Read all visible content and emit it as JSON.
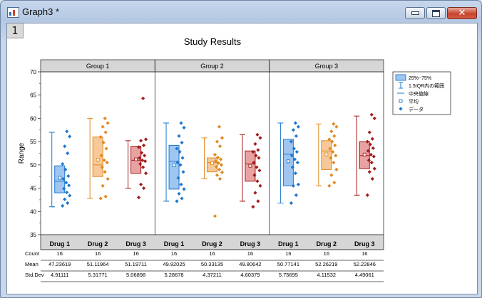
{
  "window": {
    "title": "Graph3 *",
    "page_tab": "1"
  },
  "colors": {
    "drug1": "#1f77cf",
    "drug2": "#e0891f",
    "drug3": "#a31c1c",
    "drug1_fill": "#9fc6f0",
    "drug2_fill": "#f7c99a",
    "drug3_fill": "#e9a2a2"
  },
  "chart_data": {
    "type": "box",
    "title": "Study Results",
    "ylabel": "Range",
    "ylim": [
      35,
      70
    ],
    "yticks": [
      35,
      40,
      45,
      50,
      55,
      60,
      65,
      70
    ],
    "groups": [
      "Group 1",
      "Group 2",
      "Group 3"
    ],
    "categories": [
      "Drug 1",
      "Drug 2",
      "Drug 3"
    ],
    "legend": {
      "position": "top-right",
      "items": [
        "25%~75%",
        "1.5IQR内の範囲",
        "中央値線",
        "平均",
        "データ"
      ]
    },
    "boxes": [
      {
        "group": "Group 1",
        "drug": "Drug 1",
        "whisker_low": 41,
        "q1": 44,
        "median": 46.5,
        "q3": 49.8,
        "whisker_high": 57,
        "mean": 47.23619,
        "points": [
          41.2,
          41.8,
          42.6,
          43.4,
          44.1,
          44.9,
          45.6,
          46.2,
          47.0,
          47.6,
          49.0,
          50.2,
          52.5,
          54.0,
          56.1,
          57.2
        ]
      },
      {
        "group": "Group 1",
        "drug": "Drug 2",
        "whisker_low": 42.8,
        "q1": 47.5,
        "median": 50,
        "q3": 56,
        "whisker_high": 60,
        "mean": 51.11964,
        "points": [
          42.8,
          43.2,
          45.5,
          47.0,
          48.5,
          49.5,
          50.5,
          51.0,
          52.0,
          53.5,
          54.8,
          56.0,
          57.0,
          58.2,
          59.0,
          60.0
        ]
      },
      {
        "group": "Group 1",
        "drug": "Drug 3",
        "whisker_low": 45,
        "q1": 48.2,
        "median": 51,
        "q3": 54,
        "whisker_high": 55.2,
        "mean": 51.19711,
        "points": [
          43.0,
          45.0,
          45.8,
          48.2,
          49.5,
          50.2,
          50.8,
          51.0,
          51.5,
          52.0,
          52.6,
          53.8,
          54.2,
          55.2,
          55.5,
          64.3
        ]
      },
      {
        "group": "Group 2",
        "drug": "Drug 1",
        "whisker_low": 42.2,
        "q1": 44.8,
        "median": 50.8,
        "q3": 54.2,
        "whisker_high": 59,
        "mean": 49.92025,
        "points": [
          42.2,
          42.8,
          43.8,
          44.8,
          45.8,
          47.2,
          48.5,
          50.0,
          50.5,
          51.5,
          52.8,
          53.5,
          54.8,
          56.2,
          58.0,
          59.0
        ]
      },
      {
        "group": "Group 2",
        "drug": "Drug 1",
        "whisker_low": 42.2,
        "q1": 44.8,
        "median": 50.8,
        "q3": 54.2,
        "whisker_high": 59,
        "mean": 49.92025,
        "duplicate": true,
        "points": []
      },
      {
        "group": "Group 2",
        "drug": "Drug 2",
        "whisker_low": 47,
        "q1": 48.5,
        "median": 50.5,
        "q3": 51.5,
        "whisker_high": 55.8,
        "mean": 50.33135,
        "points": [
          39.0,
          47.0,
          47.8,
          48.4,
          49.0,
          49.6,
          50.0,
          50.4,
          50.8,
          51.2,
          51.6,
          52.2,
          54.0,
          55.0,
          55.8,
          58.2
        ]
      },
      {
        "group": "Group 2",
        "drug": "Drug 3",
        "whisker_low": 42.2,
        "q1": 46.5,
        "median": 50.2,
        "q3": 53,
        "whisker_high": 56.5,
        "mean": 49.80642,
        "points": [
          41.0,
          42.2,
          44.0,
          45.5,
          46.5,
          47.8,
          48.8,
          49.5,
          50.5,
          51.5,
          52.0,
          52.8,
          53.2,
          54.5,
          55.8,
          56.5
        ]
      },
      {
        "group": "Group 3",
        "drug": "Drug 1",
        "whisker_low": 41.8,
        "q1": 45.5,
        "median": 52.3,
        "q3": 55.5,
        "whisker_high": 59,
        "mean": 50.77141,
        "points": [
          41.8,
          43.5,
          45.5,
          45.8,
          48.2,
          49.5,
          50.5,
          51.2,
          52.0,
          52.8,
          53.5,
          55.0,
          56.2,
          57.5,
          58.2,
          59.0
        ]
      },
      {
        "group": "Group 3",
        "drug": "Drug 2",
        "whisker_low": 45.5,
        "q1": 49,
        "median": 53,
        "q3": 55.2,
        "whisker_high": 58.8,
        "mean": 52.26219,
        "points": [
          45.5,
          46.2,
          47.8,
          49.0,
          50.5,
          51.5,
          52.0,
          52.8,
          53.5,
          54.2,
          55.0,
          55.5,
          56.2,
          57.2,
          58.2,
          58.8
        ]
      },
      {
        "group": "Group 3",
        "drug": "Drug 3",
        "whisker_low": 43.5,
        "q1": 49.2,
        "median": 52,
        "q3": 55,
        "whisker_high": 60.5,
        "mean": 52.22846,
        "points": [
          43.5,
          47.0,
          48.5,
          49.2,
          50.5,
          51.0,
          51.8,
          52.2,
          53.0,
          53.6,
          54.4,
          55.0,
          55.6,
          57.0,
          60.0,
          60.8
        ]
      }
    ],
    "stats_table": {
      "row_labels": [
        "Count",
        "Mean",
        "Std.Dev"
      ],
      "columns": [
        {
          "drug": "Drug 1",
          "count": "16",
          "mean": "47.23619",
          "std": "4.91111"
        },
        {
          "drug": "Drug 2",
          "count": "16",
          "mean": "51.11964",
          "std": "5.31771"
        },
        {
          "drug": "Drug 3",
          "count": "16",
          "mean": "51.19711",
          "std": "5.06898"
        },
        {
          "drug": "Drug 1",
          "count": "16",
          "mean": "49.92025",
          "std": "5.28678"
        },
        {
          "drug": "Drug 2",
          "count": "16",
          "mean": "50.33135",
          "std": "4.37211"
        },
        {
          "drug": "Drug 3",
          "count": "16",
          "mean": "49.80642",
          "std": "4.60379"
        },
        {
          "drug": "Drug 1",
          "count": "16",
          "mean": "50.77141",
          "std": "5.75695"
        },
        {
          "drug": "Drug 2",
          "count": "16",
          "mean": "52.26219",
          "std": "4.11532"
        },
        {
          "drug": "Drug 3",
          "count": "16",
          "mean": "52.22846",
          "std": "4.49061"
        }
      ]
    }
  }
}
